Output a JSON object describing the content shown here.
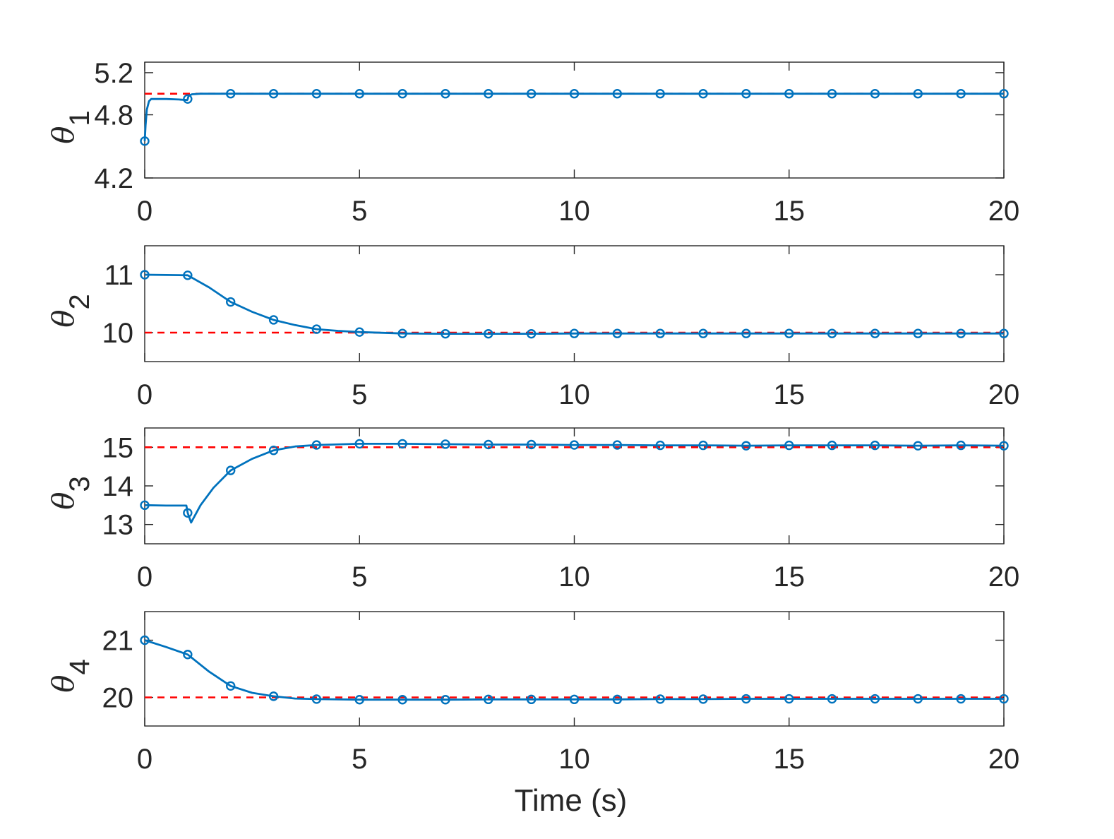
{
  "chart_data": [
    {
      "type": "line",
      "ylabel_symbol": "θ",
      "ylabel_subscript": "1",
      "xlabel": "",
      "xlim": [
        0,
        20
      ],
      "ylim": [
        4.2,
        5.3
      ],
      "xticks": [
        "0",
        "5",
        "10",
        "15",
        "20"
      ],
      "yticks": [
        "4.2",
        "4.8",
        "5.2"
      ],
      "ytick_values": [
        4.2,
        4.8,
        5.2
      ],
      "reference": 5.0,
      "x": [
        0,
        0.02,
        0.05,
        0.1,
        0.15,
        0.25,
        0.5,
        0.8,
        0.99,
        1.0,
        1.02,
        1.1,
        1.3,
        2,
        20
      ],
      "y": [
        4.55,
        4.7,
        4.85,
        4.93,
        4.95,
        4.95,
        4.95,
        4.945,
        4.94,
        4.95,
        4.98,
        4.995,
        5.0,
        5.0,
        5.0
      ],
      "markers_x": [
        0,
        1,
        2,
        3,
        4,
        5,
        6,
        7,
        8,
        9,
        10,
        11,
        12,
        13,
        14,
        15,
        16,
        17,
        18,
        19,
        20
      ],
      "markers_y": [
        4.55,
        4.95,
        5.0,
        5.0,
        5.0,
        5.0,
        5.0,
        5.0,
        5.0,
        5.0,
        5.0,
        5.0,
        5.0,
        5.0,
        5.0,
        5.0,
        5.0,
        5.0,
        5.0,
        5.0,
        5.0
      ]
    },
    {
      "type": "line",
      "ylabel_symbol": "θ",
      "ylabel_subscript": "2",
      "xlabel": "",
      "xlim": [
        0,
        20
      ],
      "ylim": [
        9.5,
        11.5
      ],
      "xticks": [
        "0",
        "5",
        "10",
        "15",
        "20"
      ],
      "yticks": [
        "10",
        "11"
      ],
      "ytick_values": [
        10,
        11
      ],
      "reference": 10.0,
      "x": [
        0,
        0.5,
        1.0,
        1.5,
        2,
        2.5,
        3,
        3.5,
        4,
        4.5,
        5,
        6,
        7,
        8,
        9,
        10,
        11,
        12,
        13,
        14,
        15,
        16,
        17,
        18,
        19,
        20
      ],
      "y": [
        11.0,
        10.995,
        10.99,
        10.78,
        10.53,
        10.36,
        10.22,
        10.13,
        10.06,
        10.03,
        10.01,
        9.985,
        9.98,
        9.98,
        9.98,
        9.985,
        9.985,
        9.985,
        9.985,
        9.985,
        9.985,
        9.985,
        9.985,
        9.985,
        9.985,
        9.985
      ],
      "markers_x": [
        0,
        1,
        2,
        3,
        4,
        5,
        6,
        7,
        8,
        9,
        10,
        11,
        12,
        13,
        14,
        15,
        16,
        17,
        18,
        19,
        20
      ],
      "markers_y": [
        11.0,
        10.99,
        10.53,
        10.22,
        10.06,
        10.01,
        9.985,
        9.98,
        9.98,
        9.98,
        9.985,
        9.985,
        9.985,
        9.985,
        9.985,
        9.985,
        9.985,
        9.985,
        9.985,
        9.985,
        9.985
      ]
    },
    {
      "type": "line",
      "ylabel_symbol": "θ",
      "ylabel_subscript": "3",
      "xlabel": "",
      "xlim": [
        0,
        20
      ],
      "ylim": [
        12.5,
        15.5
      ],
      "xticks": [
        "0",
        "5",
        "10",
        "15",
        "20"
      ],
      "yticks": [
        "13",
        "14",
        "15"
      ],
      "ytick_values": [
        13,
        14,
        15
      ],
      "reference": 15.0,
      "x": [
        0,
        0.5,
        0.97,
        1.0,
        1.08,
        1.3,
        1.6,
        2,
        2.5,
        3,
        3.5,
        4,
        5,
        6,
        7,
        8,
        9,
        10,
        11,
        12,
        13,
        14,
        15,
        16,
        17,
        18,
        19,
        20
      ],
      "y": [
        13.5,
        13.49,
        13.49,
        13.3,
        13.05,
        13.5,
        13.95,
        14.4,
        14.7,
        14.92,
        15.02,
        15.06,
        15.09,
        15.09,
        15.08,
        15.07,
        15.07,
        15.06,
        15.06,
        15.05,
        15.05,
        15.04,
        15.05,
        15.05,
        15.05,
        15.04,
        15.05,
        15.04
      ],
      "markers_x": [
        0,
        1,
        2,
        3,
        4,
        5,
        6,
        7,
        8,
        9,
        10,
        11,
        12,
        13,
        14,
        15,
        16,
        17,
        18,
        19,
        20
      ],
      "markers_y": [
        13.5,
        13.3,
        14.4,
        14.92,
        15.06,
        15.09,
        15.09,
        15.08,
        15.07,
        15.07,
        15.06,
        15.06,
        15.05,
        15.05,
        15.04,
        15.05,
        15.05,
        15.05,
        15.04,
        15.05,
        15.04
      ]
    },
    {
      "type": "line",
      "ylabel_symbol": "θ",
      "ylabel_subscript": "4",
      "xlabel": "Time (s)",
      "xlim": [
        0,
        20
      ],
      "ylim": [
        19.5,
        21.5
      ],
      "xticks": [
        "0",
        "5",
        "10",
        "15",
        "20"
      ],
      "yticks": [
        "20",
        "21"
      ],
      "ytick_values": [
        20,
        21
      ],
      "reference": 20.0,
      "x": [
        0,
        0.5,
        1.0,
        1.5,
        2,
        2.5,
        3,
        3.5,
        4,
        5,
        6,
        7,
        8,
        9,
        10,
        11,
        12,
        13,
        14,
        15,
        16,
        17,
        18,
        19,
        20
      ],
      "y": [
        21.0,
        20.88,
        20.75,
        20.45,
        20.2,
        20.08,
        20.02,
        19.98,
        19.97,
        19.96,
        19.96,
        19.96,
        19.965,
        19.965,
        19.965,
        19.965,
        19.97,
        19.97,
        19.975,
        19.975,
        19.975,
        19.975,
        19.975,
        19.975,
        19.975
      ],
      "markers_x": [
        0,
        1,
        2,
        3,
        4,
        5,
        6,
        7,
        8,
        9,
        10,
        11,
        12,
        13,
        14,
        15,
        16,
        17,
        18,
        19,
        20
      ],
      "markers_y": [
        21.0,
        20.75,
        20.2,
        20.02,
        19.97,
        19.96,
        19.96,
        19.96,
        19.965,
        19.965,
        19.965,
        19.965,
        19.97,
        19.97,
        19.975,
        19.975,
        19.975,
        19.975,
        19.975,
        19.975,
        19.975
      ]
    }
  ],
  "colors": {
    "series": "#0072BD",
    "reference": "#FF0000",
    "axes": "#262626"
  }
}
